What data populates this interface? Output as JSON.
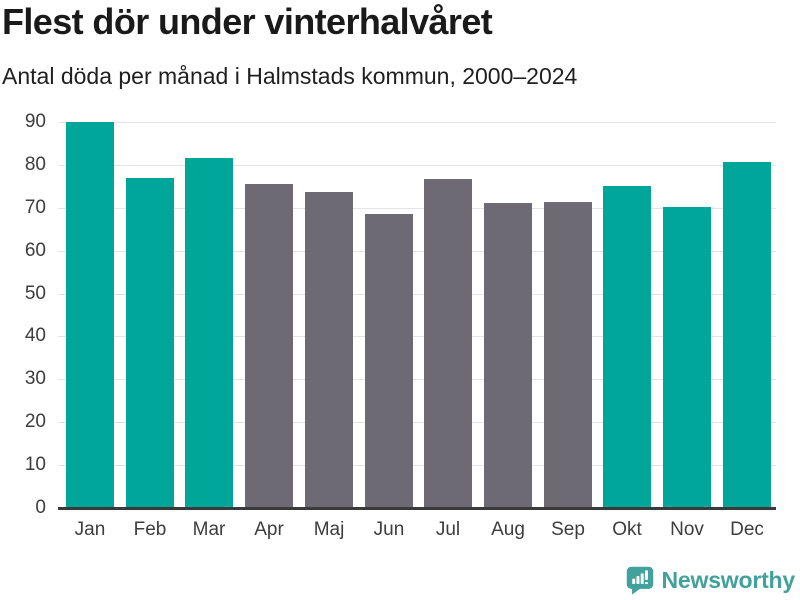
{
  "chart_data": {
    "type": "bar",
    "title": "Flest dör under vinterhalvåret",
    "subtitle": "Antal döda per månad i Halmstads kommun, 2000–2024",
    "categories": [
      "Jan",
      "Feb",
      "Mar",
      "Apr",
      "Maj",
      "Jun",
      "Jul",
      "Aug",
      "Sep",
      "Okt",
      "Nov",
      "Dec"
    ],
    "values": [
      90,
      77,
      81.7,
      75.5,
      73.6,
      68.5,
      76.6,
      71,
      71.3,
      75,
      70.1,
      80.7
    ],
    "bar_roles": [
      "highlight",
      "highlight",
      "highlight",
      "muted",
      "muted",
      "muted",
      "muted",
      "muted",
      "muted",
      "highlight",
      "highlight",
      "highlight"
    ],
    "xlabel": "",
    "ylabel": "",
    "ylim": [
      0,
      90
    ],
    "yticks": [
      0,
      10,
      20,
      30,
      40,
      50,
      60,
      70,
      80,
      90
    ],
    "grid": true,
    "legend": false
  },
  "colors": {
    "bar_highlight": "#00a69a",
    "bar_muted": "#6e6a73",
    "gridline": "#e4e4e4",
    "axis_line": "#3a3a3a",
    "title_text": "#1a1a1a",
    "subtitle_text": "#1f1f1f",
    "tick_text": "#3d3d3d",
    "brand_teal": "#42a19c"
  },
  "footer": {
    "brand": "Newsworthy",
    "logo": "newsworthy-speech-bubble-bar-chart-icon"
  }
}
